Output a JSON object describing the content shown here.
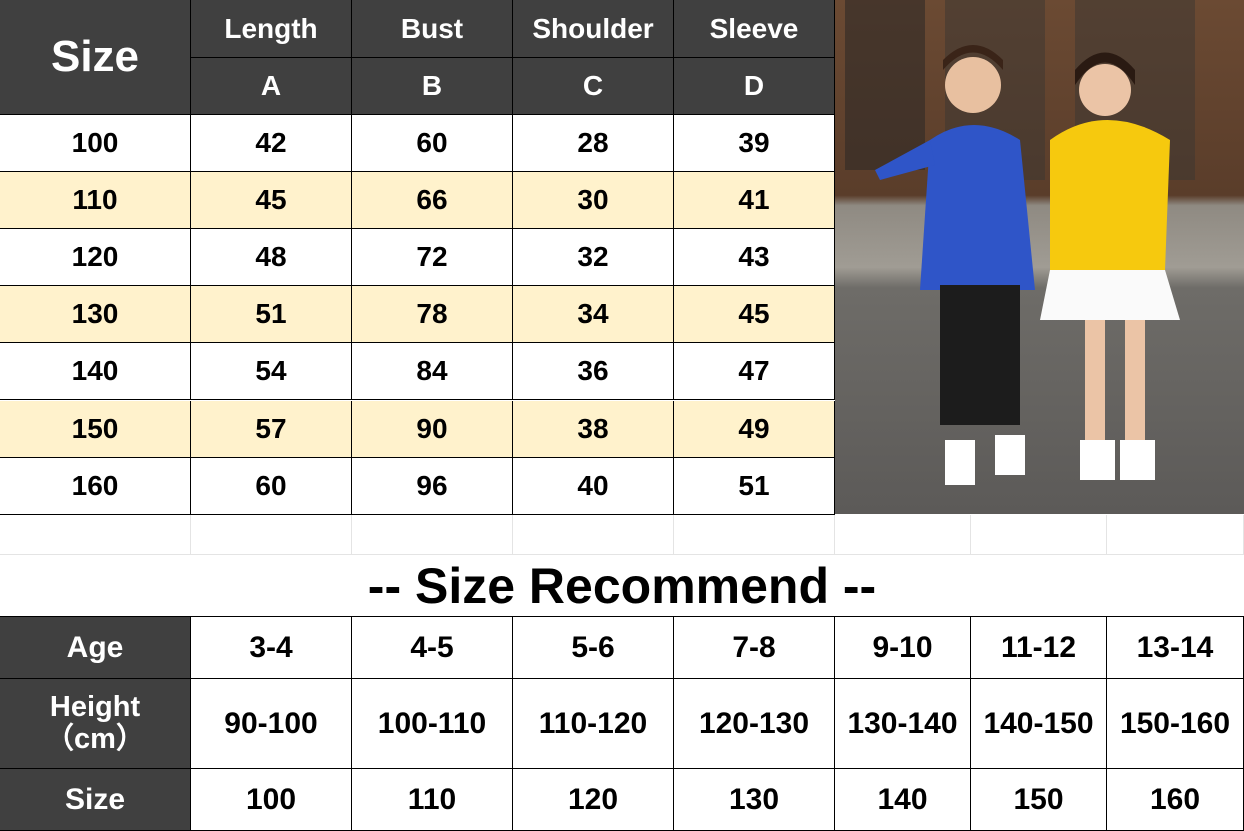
{
  "size_chart": {
    "size_label": "Size",
    "headers": [
      {
        "name": "Length",
        "code": "A"
      },
      {
        "name": "Bust",
        "code": "B"
      },
      {
        "name": "Shoulder",
        "code": "C"
      },
      {
        "name": "Sleeve",
        "code": "D"
      }
    ],
    "rows": [
      [
        "100",
        "42",
        "60",
        "28",
        "39"
      ],
      [
        "110",
        "45",
        "66",
        "30",
        "41"
      ],
      [
        "120",
        "48",
        "72",
        "32",
        "43"
      ],
      [
        "130",
        "51",
        "78",
        "34",
        "45"
      ],
      [
        "140",
        "54",
        "84",
        "36",
        "47"
      ],
      [
        "150",
        "57",
        "90",
        "38",
        "49"
      ],
      [
        "160",
        "60",
        "96",
        "40",
        "51"
      ]
    ],
    "stripe_color": "#fff2cc",
    "header_color": "#404040"
  },
  "recommend": {
    "title": "-- Size Recommend --",
    "row_labels": [
      "Age",
      "Height",
      "（cm）",
      "Size"
    ],
    "ages": [
      "3-4",
      "4-5",
      "5-6",
      "7-8",
      "9-10",
      "11-12",
      "13-14"
    ],
    "heights": [
      "90-100",
      "100-110",
      "110-120",
      "120-130",
      "130-140",
      "140-150",
      "150-160"
    ],
    "sizes": [
      "100",
      "110",
      "120",
      "130",
      "140",
      "150",
      "160"
    ]
  },
  "photo": {
    "subject": "boy in blue hoodie and girl in yellow hoodie"
  }
}
